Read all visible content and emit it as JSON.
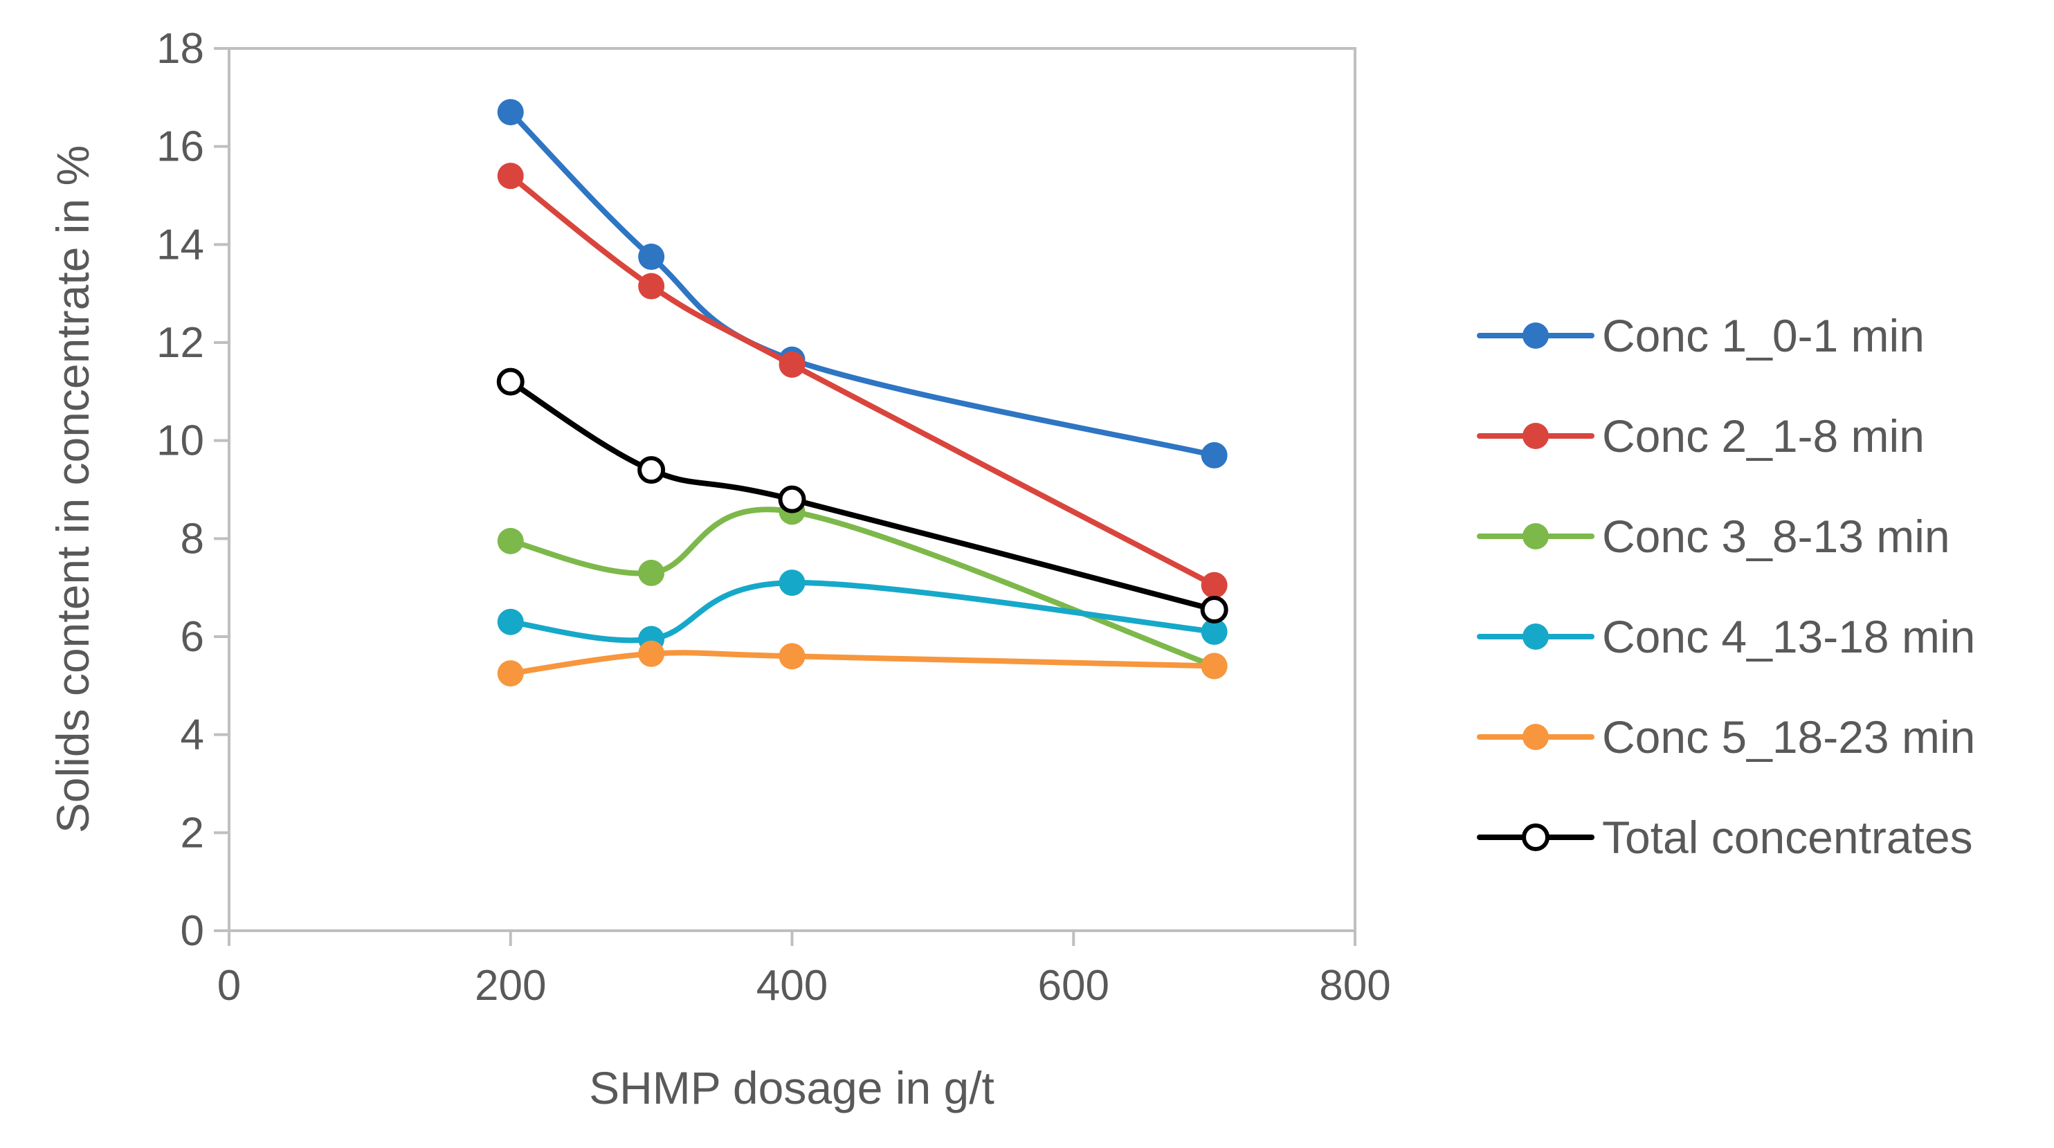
{
  "chart_data": {
    "type": "line",
    "title": "",
    "xlabel": "SHMP dosage in g/t",
    "ylabel": "Solids content in concentrate in %",
    "xlim": [
      0,
      800
    ],
    "ylim": [
      0,
      18
    ],
    "x_ticks": [
      0,
      200,
      400,
      600,
      800
    ],
    "y_ticks": [
      0,
      2,
      4,
      6,
      8,
      10,
      12,
      14,
      16,
      18
    ],
    "x_tick_labels": [
      "0",
      "200",
      "400",
      "600",
      "800"
    ],
    "y_tick_labels": [
      "0",
      "2",
      "4",
      "6",
      "8",
      "10",
      "12",
      "14",
      "16",
      "18"
    ],
    "grid": false,
    "smooth": true,
    "legend_position": "right",
    "x": [
      200,
      300,
      400,
      700
    ],
    "series": [
      {
        "name": "Conc 1_0-1 min",
        "values": [
          16.7,
          13.75,
          11.65,
          9.7
        ],
        "color": "#2E75C3",
        "marker": "filled"
      },
      {
        "name": "Conc 2_1-8 min",
        "values": [
          15.4,
          13.15,
          11.55,
          7.05
        ],
        "color": "#D9453D",
        "marker": "filled"
      },
      {
        "name": "Conc 3_8-13 min",
        "values": [
          7.95,
          7.3,
          8.55,
          5.4
        ],
        "color": "#7DB84A",
        "marker": "filled"
      },
      {
        "name": "Conc 4_13-18 min",
        "values": [
          6.3,
          5.95,
          7.1,
          6.1
        ],
        "color": "#16A8C9",
        "marker": "filled"
      },
      {
        "name": "Conc 5_18-23 min",
        "values": [
          5.25,
          5.65,
          5.6,
          5.4
        ],
        "color": "#F7963D",
        "marker": "filled"
      },
      {
        "name": "Total concentrates",
        "values": [
          11.2,
          9.4,
          8.8,
          6.55
        ],
        "color": "#000000",
        "marker": "hollow"
      }
    ]
  }
}
